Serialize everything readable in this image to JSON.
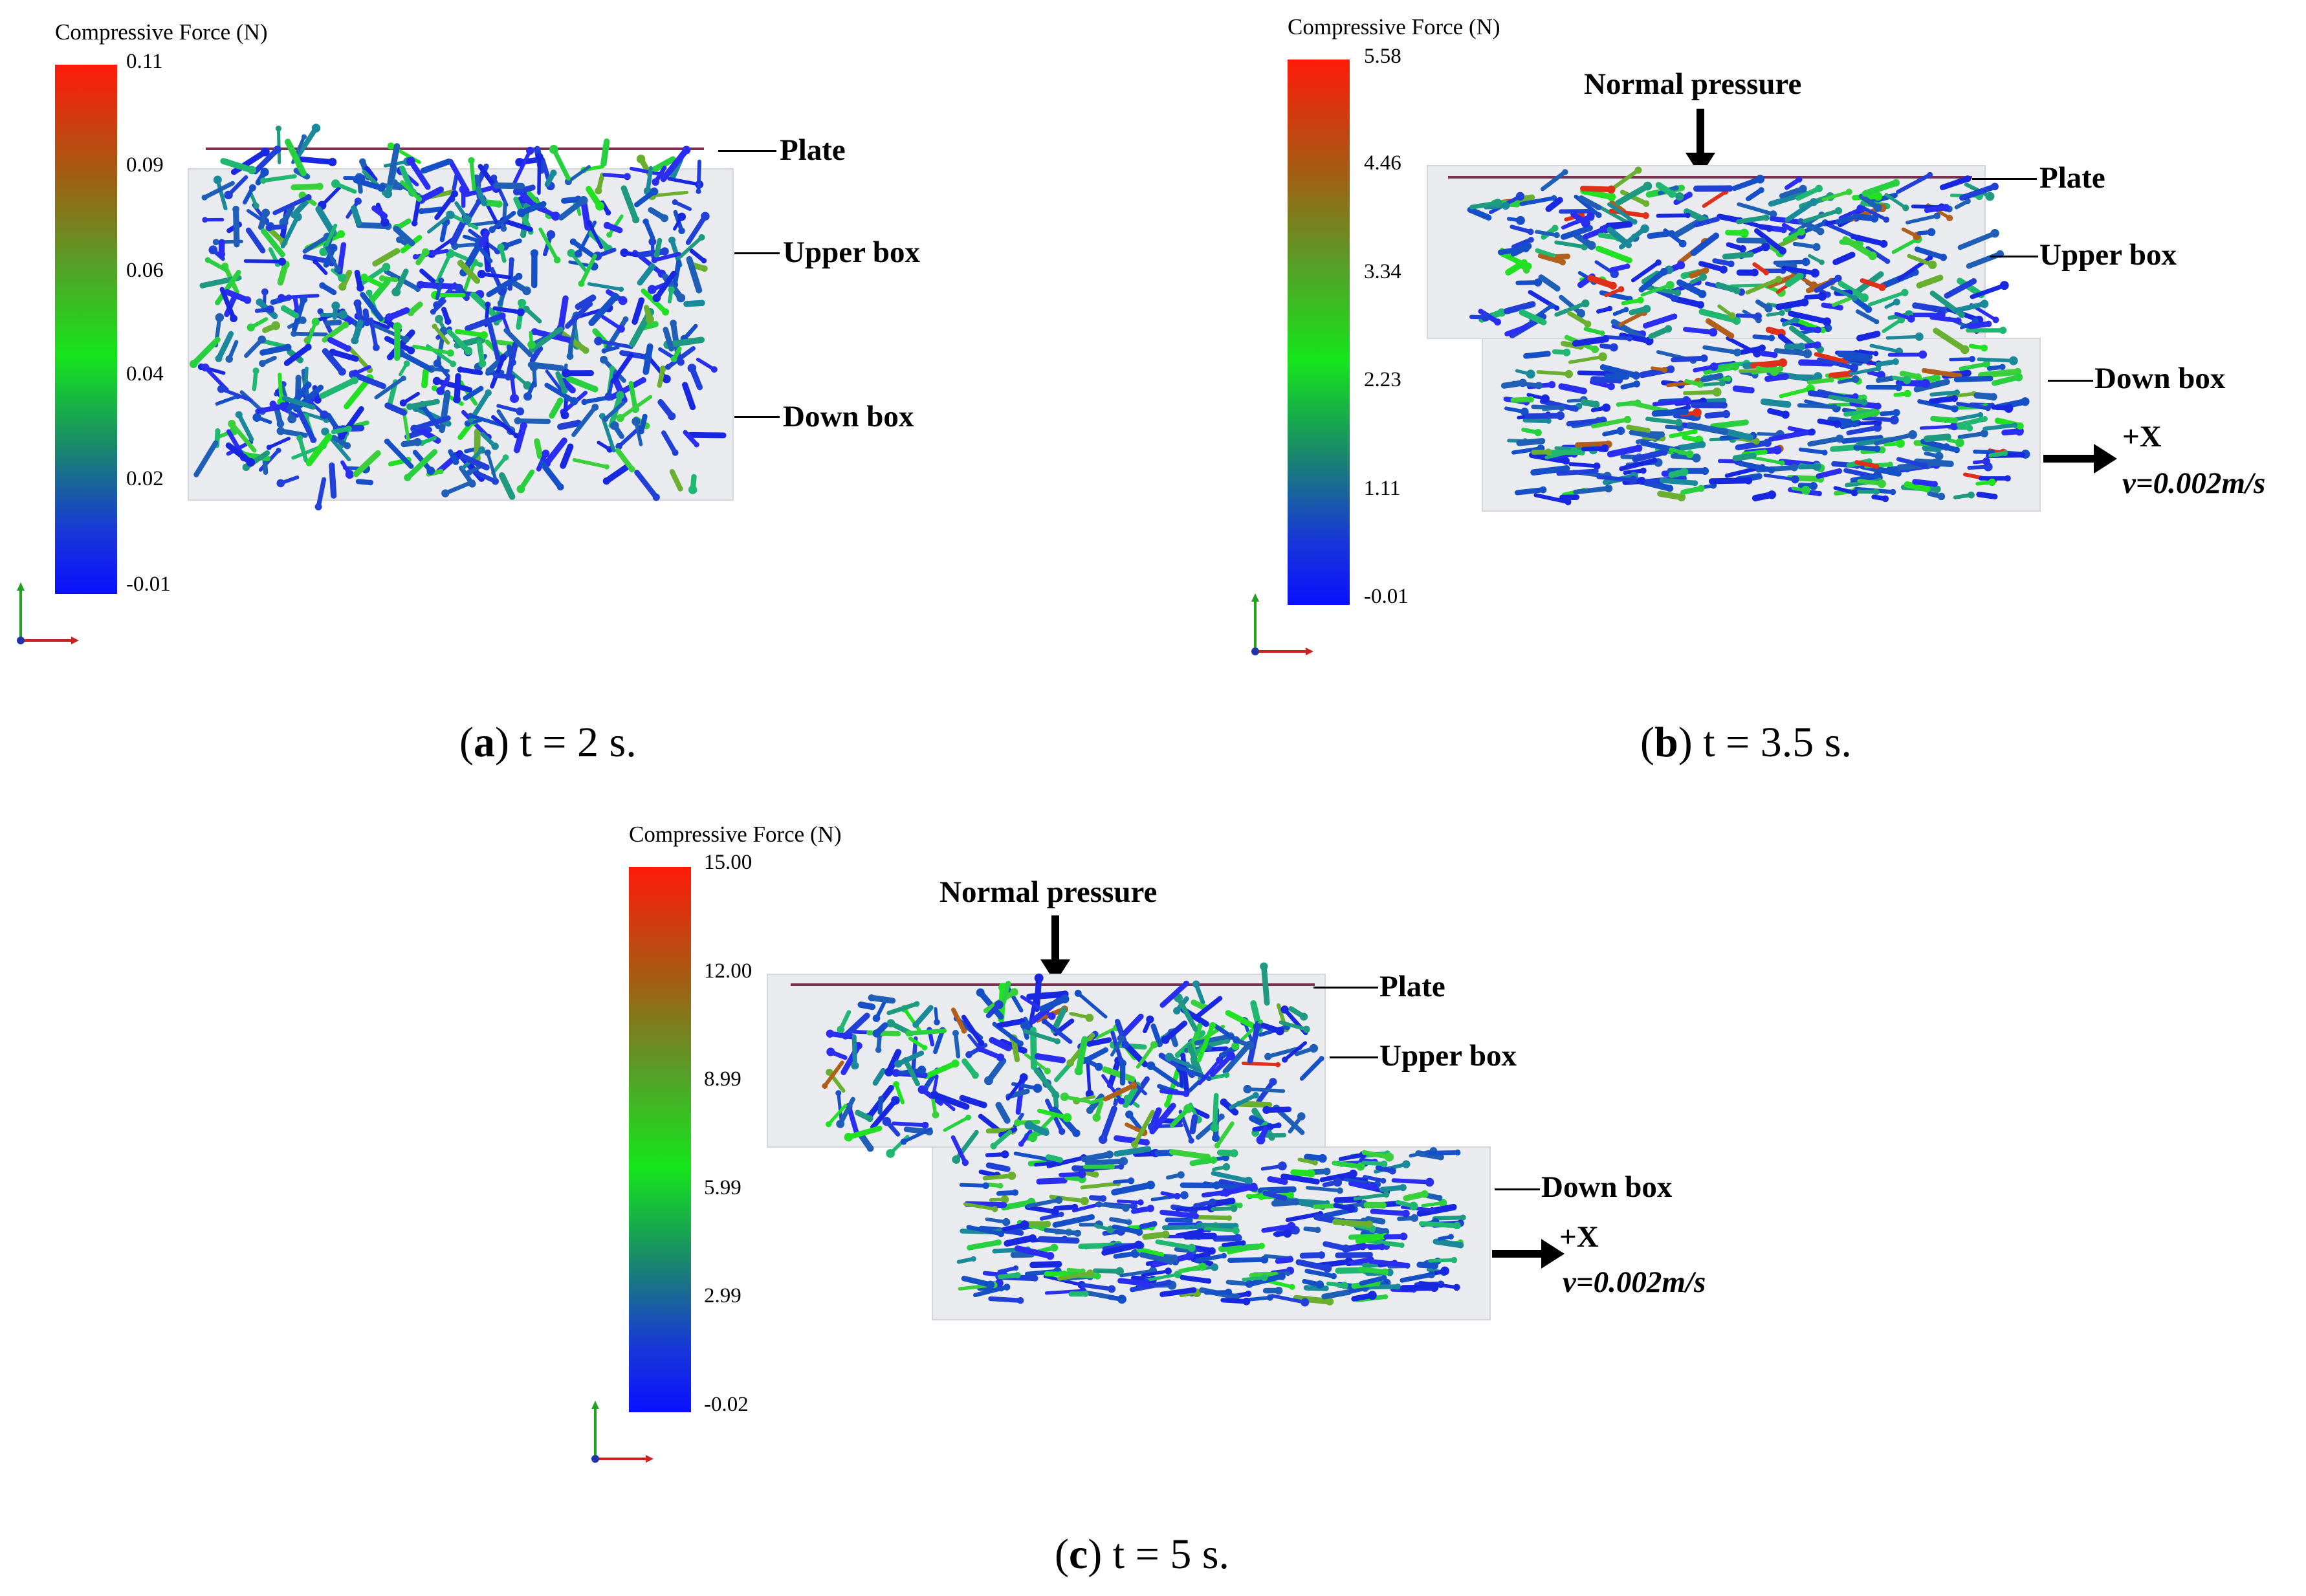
{
  "panels": [
    {
      "id": "a",
      "colorbar": {
        "title": "Compressive Force (N)",
        "ticks": [
          "0.11",
          "0.09",
          "0.06",
          "0.04",
          "0.02",
          "-0.01"
        ]
      },
      "labels": {
        "plate": "Plate",
        "upper_box": "Upper box",
        "down_box": "Down box"
      },
      "caption": {
        "letter": "a",
        "text": " t = 2 s."
      }
    },
    {
      "id": "b",
      "colorbar": {
        "title": "Compressive Force (N)",
        "ticks": [
          "5.58",
          "4.46",
          "3.34",
          "2.23",
          "1.11",
          "-0.01"
        ]
      },
      "labels": {
        "normal_pressure": "Normal pressure",
        "plate": "Plate",
        "upper_box": "Upper box",
        "down_box": "Down box",
        "direction": "+X",
        "velocity": "v=0.002m/s"
      },
      "caption": {
        "letter": "b",
        "text": " t = 3.5 s."
      }
    },
    {
      "id": "c",
      "colorbar": {
        "title": "Compressive Force (N)",
        "ticks": [
          "15.00",
          "12.00",
          "8.99",
          "5.99",
          "2.99",
          "-0.02"
        ]
      },
      "labels": {
        "normal_pressure": "Normal pressure",
        "plate": "Plate",
        "upper_box": "Upper box",
        "down_box": "Down box",
        "direction": "+X",
        "velocity": "v=0.002m/s"
      },
      "caption": {
        "letter": "c",
        "text": " t = 5 s."
      }
    }
  ],
  "colors": {
    "high": "#ff1a0a",
    "mid": "#15e51a",
    "low": "#0a10ff",
    "plate": "#7a3050"
  }
}
